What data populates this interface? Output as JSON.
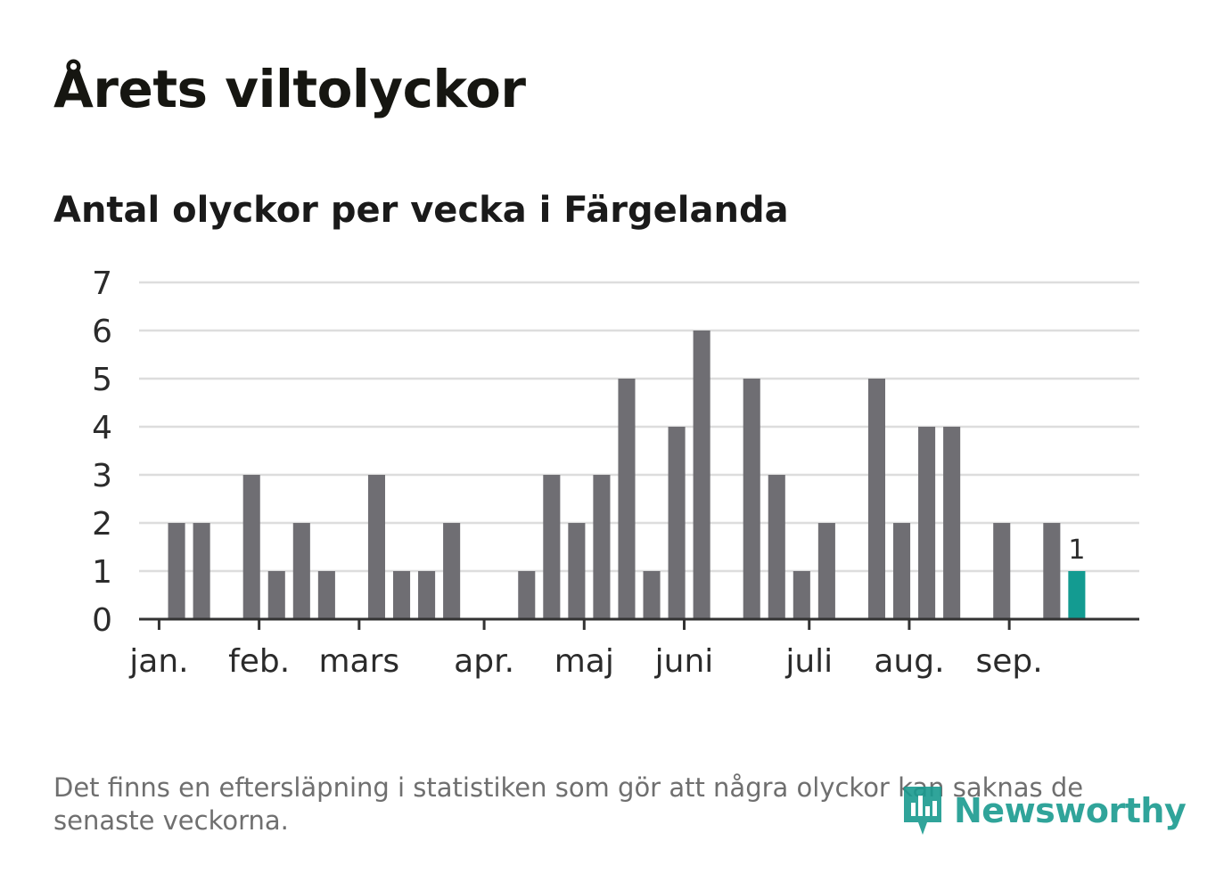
{
  "title": "Årets viltolyckor",
  "subtitle": "Antal olyckor per vecka i Färgelanda",
  "footnote": "Det finns en eftersläpning i statistiken som gör att några olyckor kan saknas de senaste veckorna.",
  "logo": {
    "text": "Newsworthy",
    "icon": "bar-chart-speech-bubble-icon"
  },
  "colors": {
    "bar": "#6f6e73",
    "highlight": "#139b91",
    "grid": "#dddddd",
    "axis": "#333333",
    "text": "#2b2b2b"
  },
  "chart_data": {
    "type": "bar",
    "title": "Antal olyckor per vecka i Färgelanda",
    "xlabel": "",
    "ylabel": "",
    "ylim": [
      0,
      7
    ],
    "yticks": [
      0,
      1,
      2,
      3,
      4,
      5,
      6,
      7
    ],
    "grid": true,
    "weeks": [
      1,
      2,
      3,
      4,
      5,
      6,
      7,
      8,
      9,
      10,
      11,
      12,
      13,
      14,
      15,
      16,
      17,
      18,
      19,
      20,
      21,
      22,
      23,
      24,
      25,
      26,
      27,
      28,
      29,
      30,
      31,
      32,
      33,
      34,
      35,
      36,
      37,
      38
    ],
    "values": [
      0,
      2,
      2,
      0,
      3,
      1,
      2,
      1,
      0,
      3,
      1,
      1,
      2,
      0,
      0,
      1,
      3,
      2,
      3,
      5,
      1,
      4,
      6,
      0,
      5,
      3,
      1,
      2,
      0,
      5,
      2,
      4,
      4,
      0,
      2,
      0,
      2,
      1
    ],
    "highlight_index": 37,
    "highlight_label": "1",
    "month_ticks": [
      {
        "label": "jan.",
        "week": 1.3
      },
      {
        "label": "feb.",
        "week": 5.3
      },
      {
        "label": "mars",
        "week": 9.3
      },
      {
        "label": "apr.",
        "week": 14.3
      },
      {
        "label": "maj",
        "week": 18.3
      },
      {
        "label": "juni",
        "week": 22.3
      },
      {
        "label": "juli",
        "week": 27.3
      },
      {
        "label": "aug.",
        "week": 31.3
      },
      {
        "label": "sep.",
        "week": 35.3
      }
    ]
  }
}
